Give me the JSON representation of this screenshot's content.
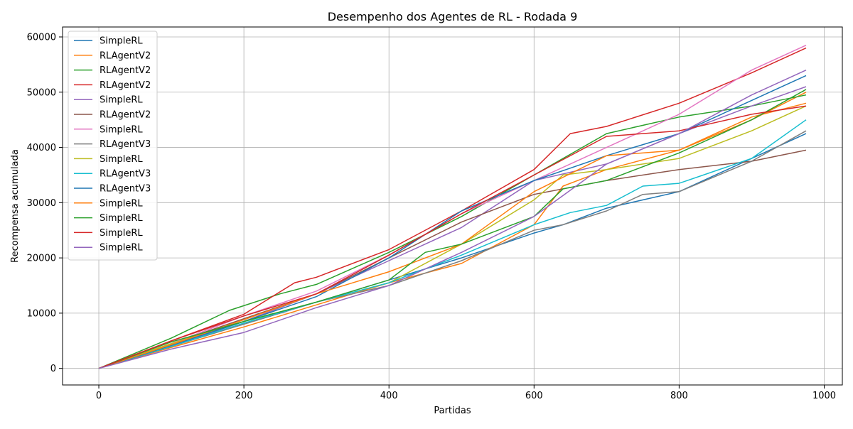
{
  "chart_data": {
    "type": "line",
    "title": "Desempenho dos Agentes de RL - Rodada 9",
    "xlabel": "Partidas",
    "ylabel": "Recompensa acumulada",
    "xlim": [
      -50,
      1025
    ],
    "ylim": [
      -3000,
      61800
    ],
    "xticks": [
      0,
      200,
      400,
      600,
      800,
      1000
    ],
    "xtick_labels": [
      "0",
      "200",
      "400",
      "600",
      "800",
      "1000"
    ],
    "yticks": [
      0,
      10000,
      20000,
      30000,
      40000,
      50000,
      60000
    ],
    "ytick_labels": [
      "0",
      "10000",
      "20000",
      "30000",
      "40000",
      "50000",
      "60000"
    ],
    "grid": true,
    "legend_position": "top-left",
    "series": [
      {
        "name": "SimpleRL",
        "color": "#1f77b4",
        "points": [
          [
            0,
            0
          ],
          [
            100,
            4200
          ],
          [
            200,
            8000
          ],
          [
            300,
            12000
          ],
          [
            400,
            16000
          ],
          [
            500,
            20000
          ],
          [
            600,
            24500
          ],
          [
            640,
            26000
          ],
          [
            700,
            29000
          ],
          [
            800,
            32000
          ],
          [
            900,
            38000
          ],
          [
            975,
            42500
          ]
        ]
      },
      {
        "name": "RLAgentV2",
        "color": "#ff7f0e",
        "points": [
          [
            0,
            0
          ],
          [
            100,
            3800
          ],
          [
            200,
            7500
          ],
          [
            300,
            11500
          ],
          [
            400,
            15500
          ],
          [
            500,
            19000
          ],
          [
            600,
            26000
          ],
          [
            640,
            33000
          ],
          [
            700,
            36000
          ],
          [
            800,
            39500
          ],
          [
            900,
            45000
          ],
          [
            975,
            50000
          ]
        ]
      },
      {
        "name": "RLAgentV2",
        "color": "#2ca02c",
        "points": [
          [
            0,
            0
          ],
          [
            100,
            5500
          ],
          [
            180,
            10500
          ],
          [
            250,
            13500
          ],
          [
            300,
            15200
          ],
          [
            400,
            21000
          ],
          [
            500,
            27500
          ],
          [
            600,
            35000
          ],
          [
            700,
            42500
          ],
          [
            800,
            45500
          ],
          [
            900,
            47500
          ],
          [
            975,
            49500
          ]
        ]
      },
      {
        "name": "RLAgentV2",
        "color": "#d62728",
        "points": [
          [
            0,
            0
          ],
          [
            100,
            5000
          ],
          [
            200,
            9800
          ],
          [
            270,
            15500
          ],
          [
            300,
            16500
          ],
          [
            400,
            21500
          ],
          [
            500,
            28500
          ],
          [
            600,
            36000
          ],
          [
            650,
            42500
          ],
          [
            700,
            43800
          ],
          [
            800,
            48000
          ],
          [
            900,
            53500
          ],
          [
            975,
            58000
          ]
        ]
      },
      {
        "name": "SimpleRL",
        "color": "#9467bd",
        "points": [
          [
            0,
            0
          ],
          [
            100,
            4000
          ],
          [
            200,
            8500
          ],
          [
            300,
            13500
          ],
          [
            400,
            19500
          ],
          [
            500,
            25500
          ],
          [
            600,
            34000
          ],
          [
            700,
            37000
          ],
          [
            800,
            42500
          ],
          [
            900,
            47500
          ],
          [
            975,
            51000
          ]
        ]
      },
      {
        "name": "RLAgentV2",
        "color": "#8c564b",
        "points": [
          [
            0,
            0
          ],
          [
            100,
            4500
          ],
          [
            200,
            9000
          ],
          [
            300,
            13500
          ],
          [
            400,
            20000
          ],
          [
            500,
            26500
          ],
          [
            600,
            31500
          ],
          [
            700,
            34000
          ],
          [
            800,
            36000
          ],
          [
            900,
            37500
          ],
          [
            975,
            39500
          ]
        ]
      },
      {
        "name": "SimpleRL",
        "color": "#e377c2",
        "points": [
          [
            0,
            0
          ],
          [
            100,
            4500
          ],
          [
            200,
            9500
          ],
          [
            300,
            14000
          ],
          [
            400,
            20500
          ],
          [
            500,
            28000
          ],
          [
            600,
            34000
          ],
          [
            700,
            40000
          ],
          [
            800,
            46000
          ],
          [
            900,
            54000
          ],
          [
            975,
            58500
          ]
        ]
      },
      {
        "name": "RLAgentV3",
        "color": "#7f7f7f",
        "points": [
          [
            0,
            0
          ],
          [
            100,
            4000
          ],
          [
            200,
            8000
          ],
          [
            300,
            12000
          ],
          [
            400,
            15000
          ],
          [
            500,
            19500
          ],
          [
            600,
            25000
          ],
          [
            640,
            26000
          ],
          [
            700,
            28500
          ],
          [
            750,
            31500
          ],
          [
            800,
            32000
          ],
          [
            900,
            37500
          ],
          [
            975,
            43000
          ]
        ]
      },
      {
        "name": "SimpleRL",
        "color": "#bcbd22",
        "points": [
          [
            0,
            0
          ],
          [
            100,
            4500
          ],
          [
            200,
            8500
          ],
          [
            300,
            12000
          ],
          [
            400,
            15500
          ],
          [
            500,
            22500
          ],
          [
            600,
            30500
          ],
          [
            640,
            35000
          ],
          [
            700,
            36000
          ],
          [
            800,
            38000
          ],
          [
            900,
            43000
          ],
          [
            975,
            47500
          ]
        ]
      },
      {
        "name": "RLAgentV3",
        "color": "#17becf",
        "points": [
          [
            0,
            0
          ],
          [
            100,
            4000
          ],
          [
            200,
            8200
          ],
          [
            300,
            12000
          ],
          [
            400,
            15500
          ],
          [
            500,
            20500
          ],
          [
            600,
            26000
          ],
          [
            650,
            28200
          ],
          [
            700,
            29500
          ],
          [
            750,
            33000
          ],
          [
            800,
            33500
          ],
          [
            900,
            38000
          ],
          [
            975,
            45000
          ]
        ]
      },
      {
        "name": "RLAgentV3",
        "color": "#1f77b4",
        "points": [
          [
            0,
            0
          ],
          [
            100,
            4200
          ],
          [
            200,
            8500
          ],
          [
            300,
            13000
          ],
          [
            400,
            20000
          ],
          [
            500,
            28500
          ],
          [
            600,
            34000
          ],
          [
            700,
            38500
          ],
          [
            800,
            42500
          ],
          [
            900,
            48500
          ],
          [
            975,
            53000
          ]
        ]
      },
      {
        "name": "SimpleRL",
        "color": "#ff7f0e",
        "points": [
          [
            0,
            0
          ],
          [
            100,
            4300
          ],
          [
            200,
            8800
          ],
          [
            300,
            13500
          ],
          [
            400,
            17500
          ],
          [
            500,
            22500
          ],
          [
            600,
            32000
          ],
          [
            700,
            38500
          ],
          [
            800,
            39500
          ],
          [
            900,
            45500
          ],
          [
            975,
            48000
          ]
        ]
      },
      {
        "name": "SimpleRL",
        "color": "#2ca02c",
        "points": [
          [
            0,
            0
          ],
          [
            100,
            4800
          ],
          [
            200,
            8500
          ],
          [
            300,
            12000
          ],
          [
            400,
            16000
          ],
          [
            450,
            21000
          ],
          [
            500,
            22500
          ],
          [
            600,
            27500
          ],
          [
            640,
            32500
          ],
          [
            700,
            34000
          ],
          [
            800,
            39000
          ],
          [
            900,
            45000
          ],
          [
            975,
            50500
          ]
        ]
      },
      {
        "name": "SimpleRL",
        "color": "#d62728",
        "points": [
          [
            0,
            0
          ],
          [
            100,
            5000
          ],
          [
            200,
            9500
          ],
          [
            300,
            13500
          ],
          [
            400,
            20500
          ],
          [
            500,
            28000
          ],
          [
            600,
            35000
          ],
          [
            700,
            42000
          ],
          [
            800,
            43000
          ],
          [
            900,
            46000
          ],
          [
            975,
            47500
          ]
        ]
      },
      {
        "name": "SimpleRL",
        "color": "#9467bd",
        "points": [
          [
            0,
            0
          ],
          [
            100,
            3500
          ],
          [
            200,
            6500
          ],
          [
            300,
            11000
          ],
          [
            400,
            15000
          ],
          [
            500,
            21000
          ],
          [
            600,
            27500
          ],
          [
            700,
            37000
          ],
          [
            800,
            42500
          ],
          [
            900,
            49500
          ],
          [
            975,
            54000
          ]
        ]
      }
    ]
  }
}
